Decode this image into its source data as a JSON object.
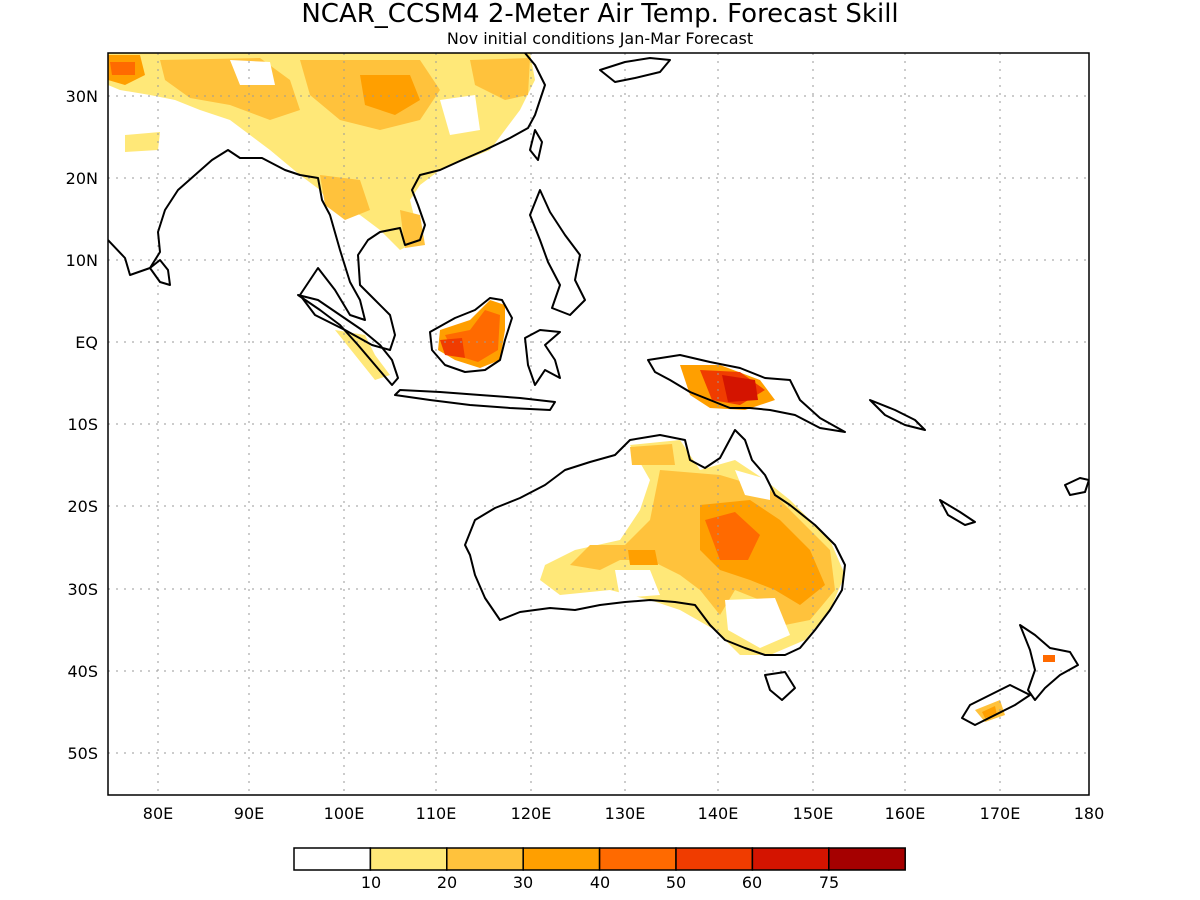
{
  "title": "NCAR_CCSM4 2-Meter Air Temp. Forecast Skill",
  "subtitle": "Nov initial conditions  Jan-Mar Forecast",
  "lat_labels": [
    "30N",
    "20N",
    "10N",
    "EQ",
    "10S",
    "20S",
    "30S",
    "40S",
    "50S"
  ],
  "lon_labels": [
    "80E",
    "90E",
    "100E",
    "110E",
    "120E",
    "130E",
    "140E",
    "150E",
    "160E",
    "170E",
    "180"
  ],
  "colorbar": {
    "labels": [
      "10",
      "20",
      "30",
      "40",
      "50",
      "60",
      "75"
    ],
    "colors": [
      "#ffffff",
      "#ffe878",
      "#ffc23c",
      "#ff9f00",
      "#ff6a00",
      "#f03c00",
      "#d41400",
      "#a50000"
    ]
  }
}
